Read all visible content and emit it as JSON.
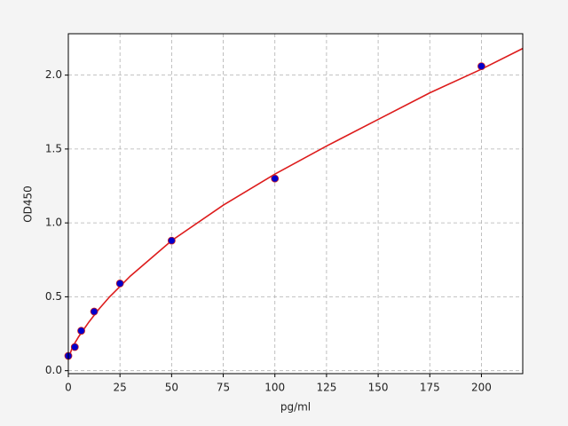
{
  "chart_data": {
    "type": "scatter",
    "x_label": "pg/ml",
    "y_label": "OD450",
    "x": [
      0,
      3.125,
      6.25,
      12.5,
      25,
      50,
      100,
      200
    ],
    "values": [
      0.1,
      0.16,
      0.27,
      0.4,
      0.59,
      0.88,
      1.3,
      2.06
    ],
    "color": "#0000cc",
    "edge_color": "#cc2222",
    "curve": {
      "x": [
        0,
        2,
        5,
        10,
        15,
        20,
        30,
        40,
        50,
        75,
        100,
        125,
        150,
        175,
        200,
        220
      ],
      "values": [
        0.08,
        0.16,
        0.23,
        0.33,
        0.42,
        0.5,
        0.64,
        0.76,
        0.88,
        1.12,
        1.33,
        1.52,
        1.7,
        1.88,
        2.04,
        2.18
      ],
      "color": "#dd1c1c"
    },
    "xlim": [
      0,
      220
    ],
    "ylim": [
      -0.02,
      2.28
    ],
    "xticks": [
      0,
      25,
      50,
      75,
      100,
      125,
      150,
      175,
      200
    ],
    "yticks": [
      {
        "value": 0,
        "label": "0.0"
      },
      0.5,
      {
        "value": 1,
        "label": "1.0"
      },
      1.5,
      {
        "value": 2,
        "label": "2.0"
      }
    ],
    "grid": true
  }
}
